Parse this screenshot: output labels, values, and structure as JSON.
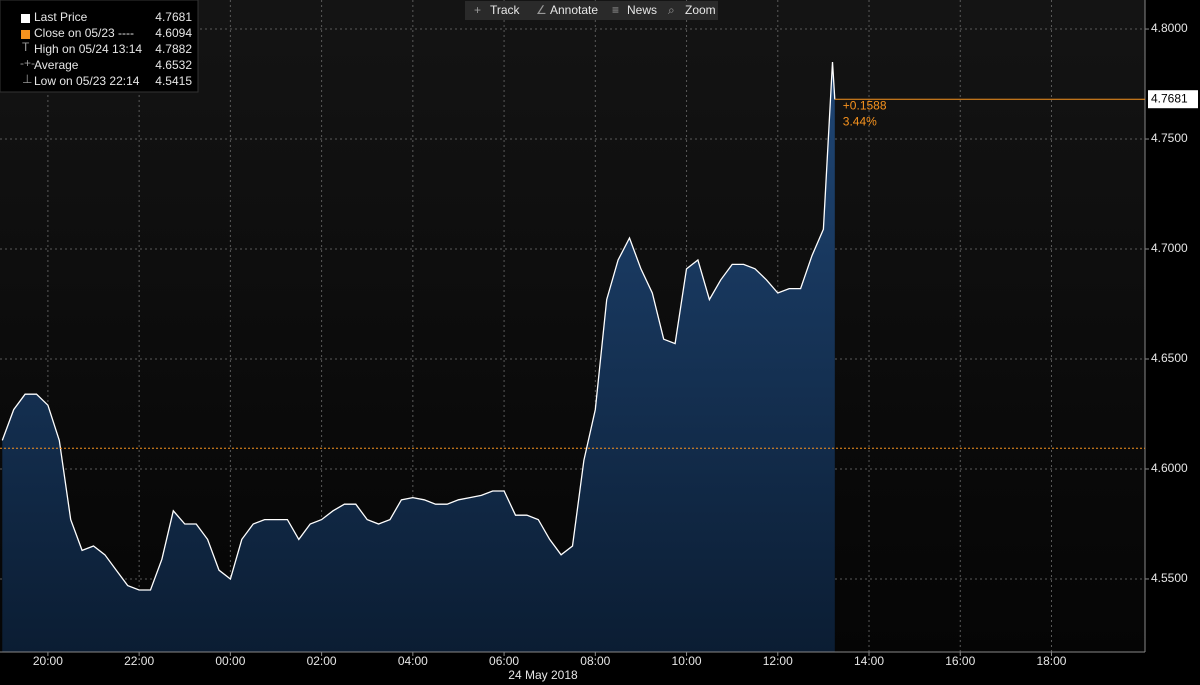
{
  "chart_data": {
    "type": "area",
    "toolbar": [
      "Track",
      "Annotate",
      "News",
      "Zoom"
    ],
    "date_label": "24 May 2018",
    "legend": [
      {
        "label": "Last Price",
        "value": 4.7681
      },
      {
        "label": "Close on 05/23 ----",
        "value": 4.6094
      },
      {
        "label": "High on 05/24 13:14",
        "value": 4.7882
      },
      {
        "label": "Average",
        "value": 4.6532
      },
      {
        "label": "Low on 05/23 22:14",
        "value": 4.5415
      }
    ],
    "change": "+0.1588",
    "change_pct": "3.44%",
    "color": "#ffffff",
    "reference_color": "#f7931e",
    "x": [
      19,
      19.25,
      19.5,
      19.75,
      20,
      20.25,
      20.5,
      20.75,
      21,
      21.25,
      21.5,
      21.75,
      22,
      22.25,
      22.5,
      22.75,
      23,
      23.25,
      23.5,
      23.75,
      24,
      24.25,
      24.5,
      24.75,
      25,
      25.25,
      25.5,
      25.75,
      26,
      26.25,
      26.5,
      26.75,
      27,
      27.25,
      27.5,
      27.75,
      28,
      28.25,
      28.5,
      28.75,
      29,
      29.25,
      29.5,
      29.75,
      30,
      30.25,
      30.5,
      30.75,
      31,
      31.25,
      31.5,
      31.75,
      32,
      32.25,
      32.5,
      32.75,
      33,
      33.25,
      33.5,
      33.75,
      34,
      34.25,
      34.5,
      34.75,
      35,
      35.25,
      35.5,
      35.75,
      36,
      36.25,
      36.5,
      36.75,
      37,
      37.2,
      37.25
    ],
    "values": [
      4.613,
      4.627,
      4.634,
      4.634,
      4.629,
      4.613,
      4.577,
      4.563,
      4.565,
      4.561,
      4.554,
      4.547,
      4.545,
      4.545,
      4.559,
      4.581,
      4.575,
      4.575,
      4.568,
      4.554,
      4.55,
      4.568,
      4.575,
      4.577,
      4.577,
      4.577,
      4.568,
      4.575,
      4.577,
      4.581,
      4.584,
      4.584,
      4.577,
      4.575,
      4.577,
      4.586,
      4.587,
      4.586,
      4.584,
      4.584,
      4.586,
      4.587,
      4.588,
      4.59,
      4.59,
      4.579,
      4.579,
      4.577,
      4.568,
      4.561,
      4.565,
      4.604,
      4.627,
      4.677,
      4.695,
      4.705,
      4.691,
      4.68,
      4.659,
      4.657,
      4.691,
      4.695,
      4.677,
      4.686,
      4.693,
      4.693,
      4.691,
      4.686,
      4.68,
      4.682,
      4.682,
      4.697,
      4.709,
      4.785,
      4.768
    ],
    "xlim": [
      18.95,
      44.05
    ],
    "xticks": [
      {
        "value": 20,
        "label": "20:00"
      },
      {
        "value": 22,
        "label": "22:00"
      },
      {
        "value": 24,
        "label": "00:00"
      },
      {
        "value": 26,
        "label": "02:00"
      },
      {
        "value": 28,
        "label": "04:00"
      },
      {
        "value": 30,
        "label": "06:00"
      },
      {
        "value": 32,
        "label": "08:00"
      },
      {
        "value": 34,
        "label": "10:00"
      },
      {
        "value": 36,
        "label": "12:00"
      },
      {
        "value": 38,
        "label": "14:00"
      },
      {
        "value": 40,
        "label": "16:00"
      },
      {
        "value": 42,
        "label": "18:00"
      }
    ],
    "ylim": [
      4.5168,
      4.8132
    ],
    "yticks": [
      {
        "value": 4.55,
        "label": "4.5500"
      },
      {
        "value": 4.6,
        "label": "4.6000"
      },
      {
        "value": 4.65,
        "label": "4.6500"
      },
      {
        "value": 4.7,
        "label": "4.7000"
      },
      {
        "value": 4.75,
        "label": "4.7500"
      },
      {
        "value": 4.8,
        "label": "4.8000"
      }
    ],
    "grid": true
  }
}
